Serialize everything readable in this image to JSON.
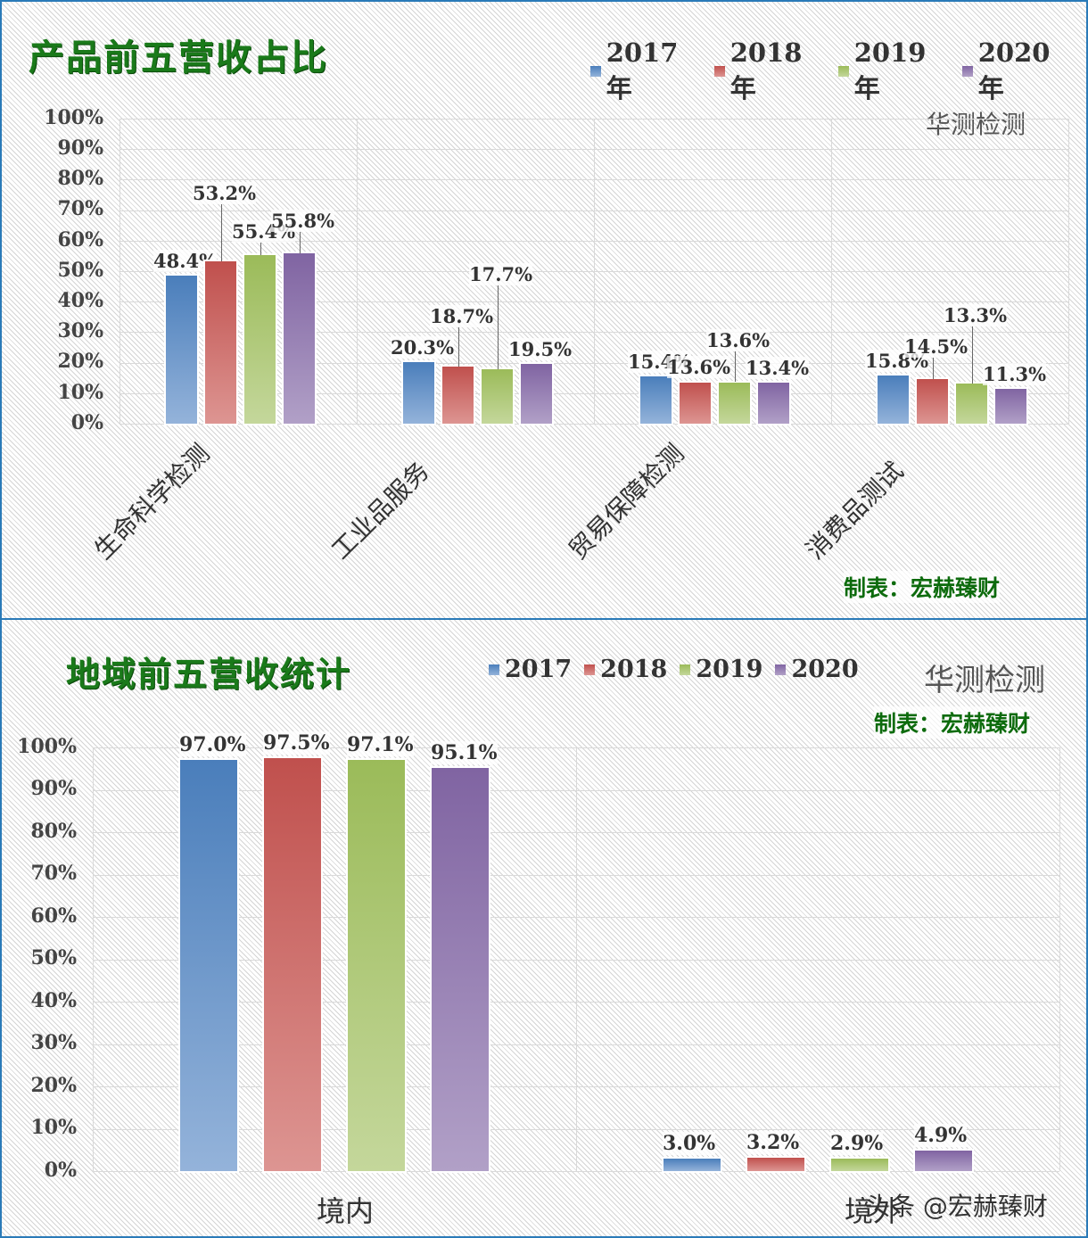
{
  "colors": {
    "2017": [
      "#4a7ebb",
      "#94b3da"
    ],
    "2018": [
      "#c0504d",
      "#dd9592"
    ],
    "2019": [
      "#9bbb59",
      "#c4d79b"
    ],
    "2020": [
      "#8064a2",
      "#b1a0c7"
    ],
    "title_green": "#1a7a1a",
    "frame": "#2a7ab8"
  },
  "chart_data": [
    {
      "type": "bar",
      "title": "产品前五营收占比",
      "brand": "华测检测",
      "credit": "制表：宏赫臻财",
      "categories": [
        "生命科学检测",
        "工业品服务",
        "贸易保障检测",
        "消费品测试"
      ],
      "legend": [
        "2017年",
        "2018年",
        "2019年",
        "2020年"
      ],
      "series": [
        {
          "name": "2017年",
          "values": [
            48.4,
            20.3,
            15.4,
            15.8
          ],
          "labels": [
            "48.4%",
            "20.3%",
            "15.4%",
            "15.8%"
          ]
        },
        {
          "name": "2018年",
          "values": [
            53.2,
            18.7,
            13.6,
            14.5
          ],
          "labels": [
            "53.2%",
            "18.7%",
            "13.6%",
            "14.5%"
          ]
        },
        {
          "name": "2019年",
          "values": [
            55.4,
            17.7,
            13.6,
            13.3
          ],
          "labels": [
            "55.4%",
            "17.7%",
            "13.6%",
            "13.3%"
          ]
        },
        {
          "name": "2020年",
          "values": [
            55.8,
            19.5,
            13.4,
            11.3
          ],
          "labels": [
            "55.8%",
            "19.5%",
            "13.4%",
            "11.3%"
          ]
        }
      ],
      "yticks": [
        "100%",
        "90%",
        "80%",
        "70%",
        "60%",
        "50%",
        "40%",
        "30%",
        "20%",
        "10%",
        "0%"
      ],
      "xlabel": "",
      "ylabel": "",
      "ylim": [
        0,
        100
      ],
      "grid": true,
      "legend_position": "top-right"
    },
    {
      "type": "bar",
      "title": "地域前五营收统计",
      "brand": "华测检测",
      "credit": "制表：宏赫臻财",
      "categories": [
        "境内",
        "境外"
      ],
      "legend": [
        "2017",
        "2018",
        "2019",
        "2020"
      ],
      "series": [
        {
          "name": "2017",
          "values": [
            97.0,
            3.0
          ],
          "labels": [
            "97.0%",
            "3.0%"
          ]
        },
        {
          "name": "2018",
          "values": [
            97.5,
            3.2
          ],
          "labels": [
            "97.5%",
            "3.2%"
          ]
        },
        {
          "name": "2019",
          "values": [
            97.1,
            2.9
          ],
          "labels": [
            "97.1%",
            "2.9%"
          ]
        },
        {
          "name": "2020",
          "values": [
            95.1,
            4.9
          ],
          "labels": [
            "95.1%",
            "4.9%"
          ]
        }
      ],
      "yticks": [
        "100%",
        "90%",
        "80%",
        "70%",
        "60%",
        "50%",
        "40%",
        "30%",
        "20%",
        "10%",
        "0%"
      ],
      "xlabel": "",
      "ylabel": "",
      "ylim": [
        0,
        100
      ],
      "grid": true,
      "legend_position": "top-center"
    }
  ],
  "watermark": "头条 @宏赫臻财"
}
